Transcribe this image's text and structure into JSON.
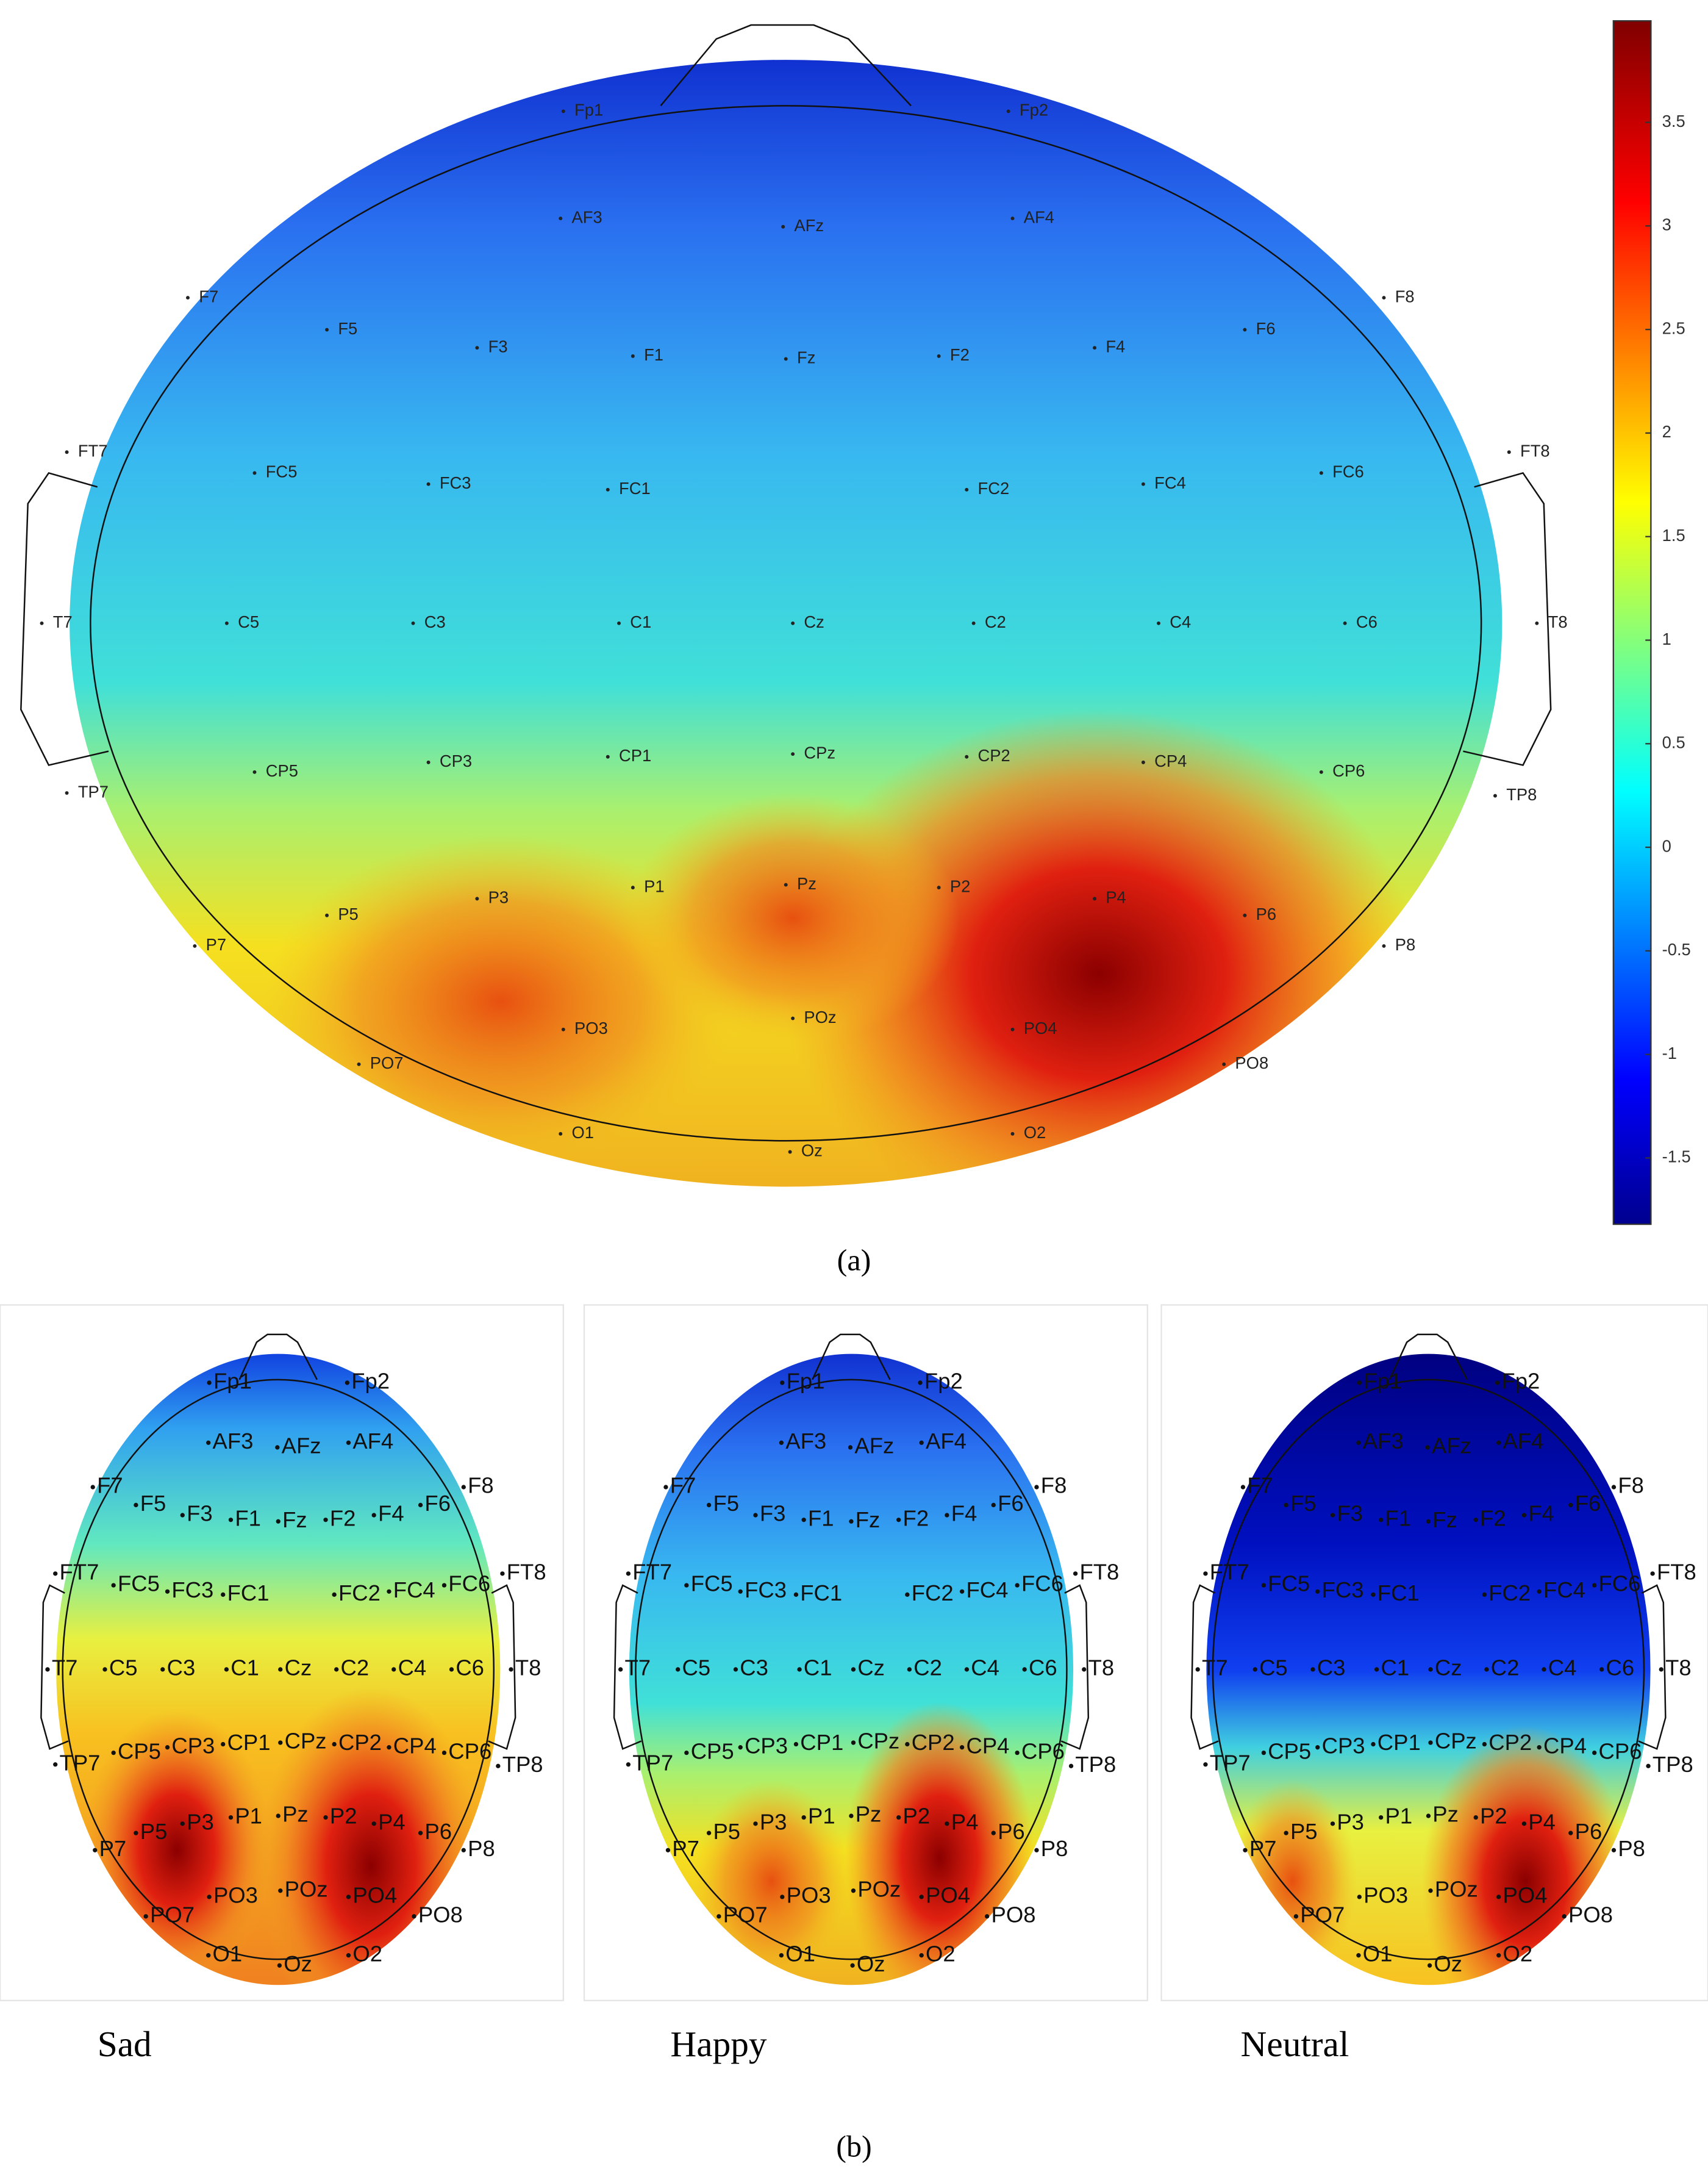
{
  "panel_a": {
    "label": "(a)",
    "electrodes": [
      "Fp1",
      "Fp2",
      "AF3",
      "AFz",
      "AF4",
      "F7",
      "F5",
      "F3",
      "F1",
      "Fz",
      "F2",
      "F4",
      "F6",
      "F8",
      "FT7",
      "FC5",
      "FC3",
      "FC1",
      "FC2",
      "FC4",
      "FC6",
      "FT8",
      "T7",
      "C5",
      "C3",
      "C1",
      "Cz",
      "C2",
      "C4",
      "C6",
      "T8",
      "TP7",
      "CP5",
      "CP3",
      "CP1",
      "CPz",
      "CP2",
      "CP4",
      "CP6",
      "TP8",
      "P7",
      "P5",
      "P3",
      "P1",
      "Pz",
      "P2",
      "P4",
      "P6",
      "P8",
      "PO7",
      "PO3",
      "POz",
      "PO4",
      "PO8",
      "O1",
      "Oz",
      "O2"
    ],
    "colorbar": {
      "lim": [
        -1.82,
        3.99
      ],
      "ticks": [
        -1.5,
        -1,
        -0.5,
        0,
        0.5,
        1,
        1.5,
        2,
        2.5,
        3,
        3.5
      ]
    }
  },
  "panel_b": {
    "label": "(b)",
    "conditions": [
      "Sad",
      "Happy",
      "Neutral"
    ]
  }
}
